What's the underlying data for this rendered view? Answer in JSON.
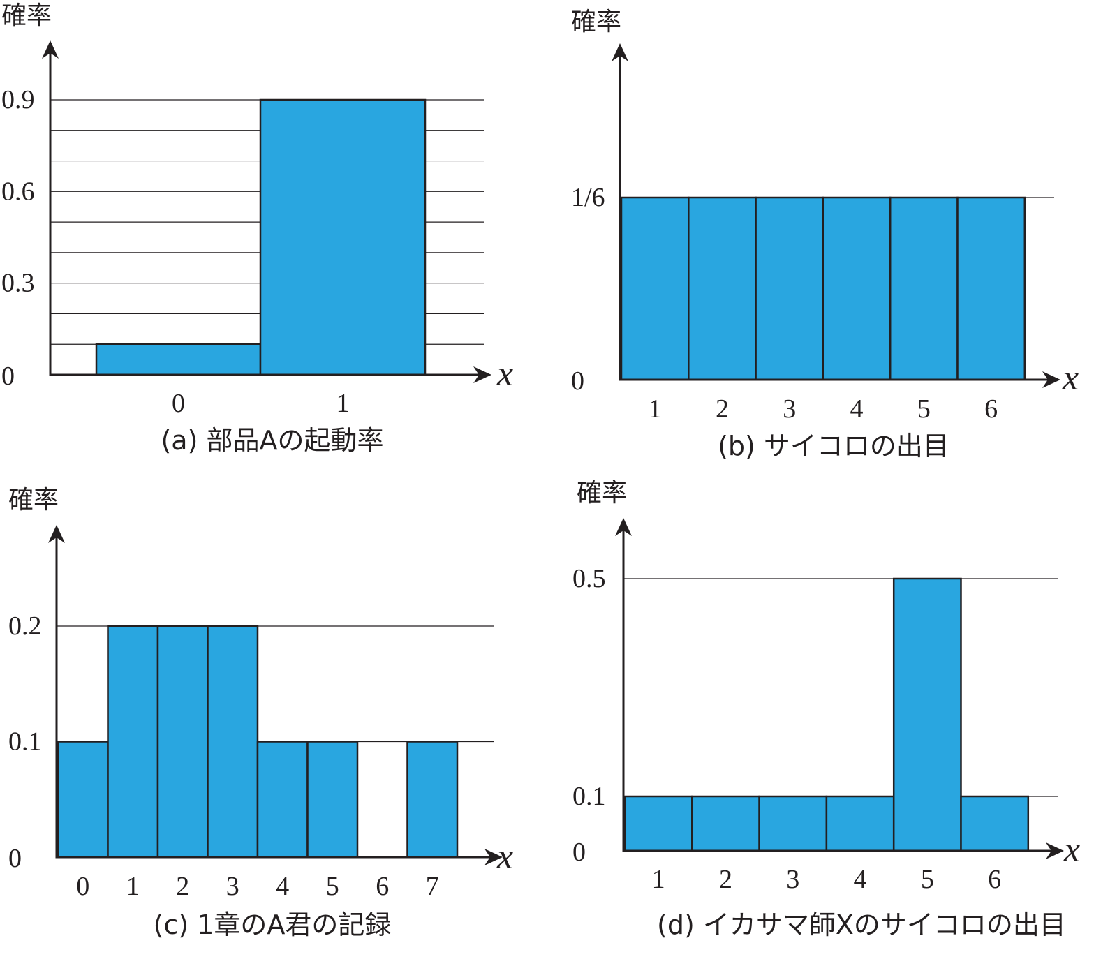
{
  "colors": {
    "bar": "#29a6e0",
    "ink": "#231f20"
  },
  "chart_data": [
    {
      "type": "bar",
      "ylabel": "確率",
      "xlabel": "x",
      "caption": "(a) 部品Aの起動率",
      "categories": [
        "0",
        "1"
      ],
      "values": [
        0.1,
        0.9
      ],
      "ylim": [
        0,
        0.9
      ],
      "yticks": [
        {
          "value": 0,
          "label": "0"
        },
        {
          "value": 0.3,
          "label": "0.3"
        },
        {
          "value": 0.6,
          "label": "0.6"
        },
        {
          "value": 0.9,
          "label": "0.9"
        }
      ],
      "gridlines": [
        0.1,
        0.2,
        0.3,
        0.4,
        0.5,
        0.6,
        0.7,
        0.8,
        0.9
      ],
      "grid": true
    },
    {
      "type": "bar",
      "ylabel": "確率",
      "xlabel": "x",
      "caption": "(b) サイコロの出目",
      "categories": [
        "1",
        "2",
        "3",
        "4",
        "5",
        "6"
      ],
      "values": [
        0.16667,
        0.16667,
        0.16667,
        0.16667,
        0.16667,
        0.16667
      ],
      "ylim": [
        0,
        0.16667
      ],
      "yticks": [
        {
          "value": 0,
          "label": "0"
        },
        {
          "value": 0.16667,
          "label": "1/6"
        }
      ],
      "gridlines": [
        0.16667
      ],
      "grid": true
    },
    {
      "type": "bar",
      "ylabel": "確率",
      "xlabel": "x",
      "caption": "(c) 1章のA君の記録",
      "categories": [
        "0",
        "1",
        "2",
        "3",
        "4",
        "5",
        "6",
        "7"
      ],
      "values": [
        0.1,
        0.2,
        0.2,
        0.2,
        0.1,
        0.1,
        0,
        0.1
      ],
      "ylim": [
        0,
        0.2
      ],
      "yticks": [
        {
          "value": 0,
          "label": "0"
        },
        {
          "value": 0.1,
          "label": "0.1"
        },
        {
          "value": 0.2,
          "label": "0.2"
        }
      ],
      "gridlines": [
        0.1,
        0.2
      ],
      "grid": true
    },
    {
      "type": "bar",
      "ylabel": "確率",
      "xlabel": "x",
      "caption": "(d) イカサマ師Xのサイコロの出目",
      "categories": [
        "1",
        "2",
        "3",
        "4",
        "5",
        "6"
      ],
      "values": [
        0.1,
        0.1,
        0.1,
        0.1,
        0.5,
        0.1
      ],
      "ylim": [
        0,
        0.5
      ],
      "yticks": [
        {
          "value": 0,
          "label": "0"
        },
        {
          "value": 0.1,
          "label": "0.1"
        },
        {
          "value": 0.5,
          "label": "0.5"
        }
      ],
      "gridlines": [
        0.1,
        0.5
      ],
      "grid": true
    }
  ]
}
